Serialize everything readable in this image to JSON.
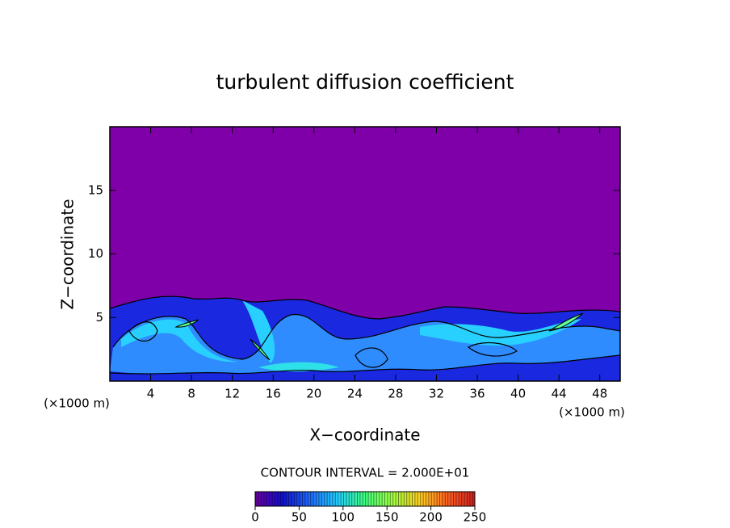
{
  "chart_data": {
    "type": "contour",
    "title": "turbulent diffusion coefficient",
    "xlabel": "X−coordinate",
    "ylabel": "Z−coordinate",
    "xunit": "(×1000 m)",
    "yunit": "(×1000 m)",
    "xlim": [
      0,
      50
    ],
    "xticks": [
      4,
      8,
      12,
      16,
      20,
      24,
      28,
      32,
      36,
      40,
      44,
      48
    ],
    "ylim": [
      0,
      20
    ],
    "yticks": [
      5,
      10,
      15
    ],
    "contour_interval_label": "CONTOUR INTERVAL = 2.000E+01",
    "colorbar_lim": [
      0,
      250
    ],
    "colorbar_ticks": [
      0,
      50,
      100,
      150,
      200,
      250
    ],
    "colorbar_colors": [
      "#6a00a0",
      "#1010d0",
      "#1e6cff",
      "#20d0ff",
      "#40ff80",
      "#a0ff40",
      "#ffd020",
      "#ff6020",
      "#d02020"
    ]
  }
}
